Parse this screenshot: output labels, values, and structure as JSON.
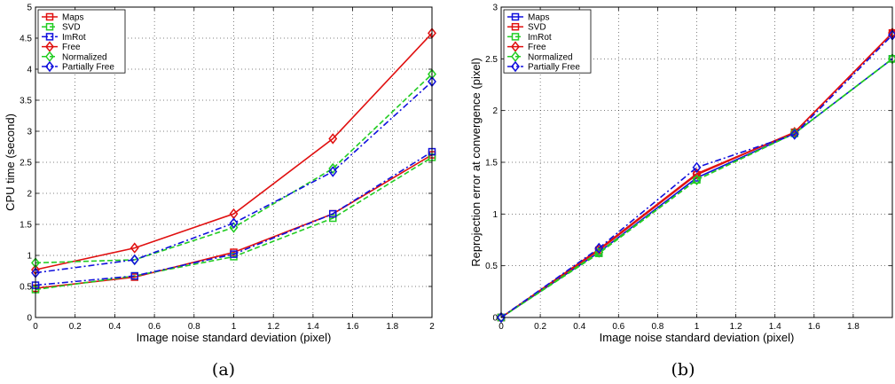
{
  "chart_data": [
    {
      "type": "line",
      "caption": "(a)",
      "xlabel": "Image noise standard deviation (pixel)",
      "ylabel": "CPU time (second)",
      "xlim": [
        0,
        2
      ],
      "ylim": [
        0,
        5
      ],
      "xticks": [
        0,
        0.2,
        0.4,
        0.6,
        0.8,
        1,
        1.2,
        1.4,
        1.6,
        1.8,
        2
      ],
      "yticks": [
        0,
        0.5,
        1,
        1.5,
        2,
        2.5,
        3,
        3.5,
        4,
        4.5,
        5
      ],
      "grid": true,
      "legend_position": "top-left",
      "x": [
        0,
        0.5,
        1,
        1.5,
        2
      ],
      "series": [
        {
          "name": "Maps",
          "color": "#e01010",
          "marker": "square",
          "dash": "solid",
          "values": [
            0.47,
            0.65,
            1.05,
            1.67,
            2.62
          ]
        },
        {
          "name": "SVD",
          "color": "#22cc22",
          "marker": "square",
          "dash": "dashed",
          "values": [
            0.45,
            0.67,
            0.98,
            1.6,
            2.58
          ]
        },
        {
          "name": "ImRot",
          "color": "#1010dd",
          "marker": "square",
          "dash": "dashdot",
          "values": [
            0.52,
            0.67,
            1.02,
            1.67,
            2.67
          ]
        },
        {
          "name": "Free",
          "color": "#e01010",
          "marker": "diamond",
          "dash": "solid",
          "values": [
            0.77,
            1.12,
            1.67,
            2.88,
            4.58
          ]
        },
        {
          "name": "Normalized",
          "color": "#22cc22",
          "marker": "diamond",
          "dash": "dashed",
          "values": [
            0.88,
            0.93,
            1.45,
            2.4,
            3.92
          ]
        },
        {
          "name": "Partially Free",
          "color": "#1010dd",
          "marker": "diamond",
          "dash": "dashdot",
          "values": [
            0.72,
            0.93,
            1.52,
            2.35,
            3.8
          ]
        }
      ]
    },
    {
      "type": "line",
      "caption": "(b)",
      "xlabel": "Image noise standard deviation (pixel)",
      "ylabel": "Reprojection error at convergence (pixel)",
      "xlim": [
        0,
        2
      ],
      "ylim": [
        0,
        3
      ],
      "xticks": [
        0,
        0.2,
        0.4,
        0.6,
        0.8,
        1,
        1.2,
        1.4,
        1.6,
        1.8
      ],
      "yticks": [
        0,
        0.5,
        1,
        1.5,
        2,
        2.5,
        3
      ],
      "grid": true,
      "legend_position": "top-left",
      "x": [
        0,
        0.5,
        1,
        1.5,
        2
      ],
      "series": [
        {
          "name": "Maps",
          "color": "#1010dd",
          "marker": "square",
          "dash": "solid",
          "values": [
            0,
            0.63,
            1.35,
            1.78,
            2.5
          ]
        },
        {
          "name": "SVD",
          "color": "#e01010",
          "marker": "square",
          "dash": "solid",
          "values": [
            0,
            0.65,
            1.38,
            1.79,
            2.75
          ]
        },
        {
          "name": "ImRot",
          "color": "#22cc22",
          "marker": "square",
          "dash": "dashed",
          "values": [
            0,
            0.62,
            1.33,
            1.78,
            2.5
          ]
        },
        {
          "name": "Free",
          "color": "#e01010",
          "marker": "diamond",
          "dash": "solid",
          "values": [
            0,
            0.66,
            1.39,
            1.79,
            2.75
          ]
        },
        {
          "name": "Normalized",
          "color": "#22cc22",
          "marker": "diamond",
          "dash": "dashed",
          "values": [
            0,
            0.63,
            1.33,
            1.78,
            2.5
          ]
        },
        {
          "name": "Partially Free",
          "color": "#1010dd",
          "marker": "diamond",
          "dash": "dashdot",
          "values": [
            0,
            0.67,
            1.45,
            1.77,
            2.73
          ]
        }
      ]
    }
  ]
}
